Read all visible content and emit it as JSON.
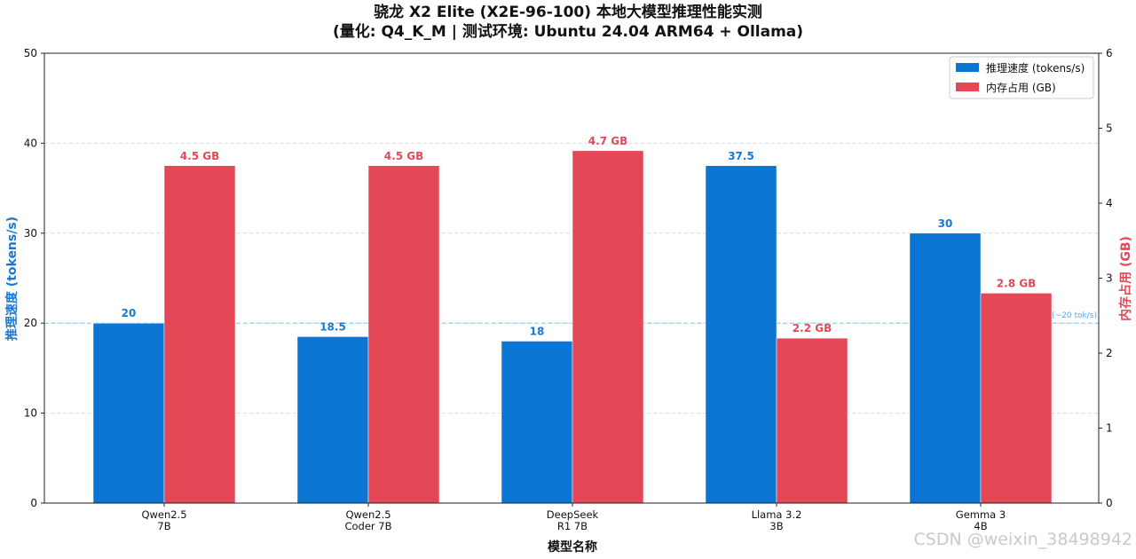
{
  "chart_data": {
    "type": "bar",
    "title": "骁龙 X2 Elite (X2E-96-100) 本地大模型推理性能实测",
    "subtitle": "(量化: Q4_K_M | 测试环境: Ubuntu 24.04 ARM64 + Ollama)",
    "xlabel": "模型名称",
    "ylabel_left": "推理速度 (tokens/s)",
    "ylabel_right": "内存占用 (GB)",
    "ylim_left": [
      0,
      50
    ],
    "ylim_right": [
      0,
      6
    ],
    "yticks_left": [
      "0",
      "10",
      "20",
      "30",
      "40",
      "50"
    ],
    "yticks_right": [
      "0",
      "1",
      "2",
      "3",
      "4",
      "5",
      "6"
    ],
    "grid": "horizontal dashed",
    "legend_placement": "top-right",
    "categories": [
      [
        "Qwen2.5",
        "7B"
      ],
      [
        "Qwen2.5",
        "Coder 7B"
      ],
      [
        "DeepSeek",
        "R1 7B"
      ],
      [
        "Llama 3.2",
        "3B"
      ],
      [
        "Gemma 3",
        "4B"
      ]
    ],
    "series": [
      {
        "name": "推理速度 (tokens/s)",
        "axis": "left",
        "color": "#0a75d2",
        "values": [
          20,
          18.5,
          18,
          37.5,
          30
        ],
        "labels": [
          "20",
          "18.5",
          "18",
          "37.5",
          "30"
        ]
      },
      {
        "name": "内存占用 (GB)",
        "axis": "right",
        "color": "#e44756",
        "values": [
          4.5,
          4.5,
          4.7,
          2.2,
          2.8
        ],
        "labels": [
          "4.5 GB",
          "4.5 GB",
          "4.7 GB",
          "2.2 GB",
          "2.8 GB"
        ]
      }
    ],
    "reference_line": {
      "value": 20,
      "axis": "left",
      "label": "流畅度参考 (~20 tok/s)",
      "color": "#8cc0ea"
    }
  },
  "watermark": "CSDN @weixin_38498942"
}
